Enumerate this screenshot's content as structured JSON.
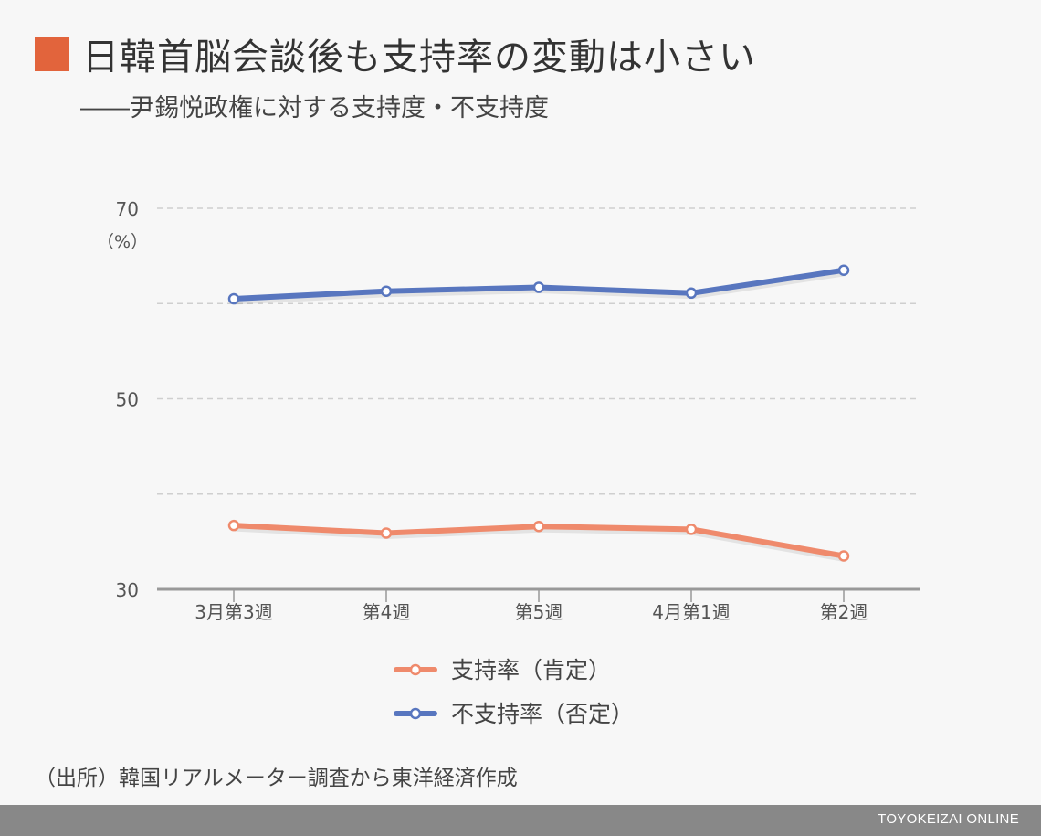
{
  "title": "日韓首脳会談後も支持率の変動は小さい",
  "subtitle": "――尹錫悦政権に対する支持度・不支持度",
  "source": "（出所）韓国リアルメーター調査から東洋経済作成",
  "footer_brand": "TOYOKEIZAI ONLINE",
  "colors": {
    "accent": "#e2643c",
    "approve": "#ef8a6c",
    "disapprove": "#5876bf",
    "footer": "#888888"
  },
  "chart_data": {
    "type": "line",
    "categories": [
      "3月第3週",
      "第4週",
      "第5週",
      "4月第1週",
      "第2週"
    ],
    "unit_label": "（%）",
    "ylim": [
      30,
      70
    ],
    "yticks": [
      30,
      50,
      70
    ],
    "gridlines": [
      40,
      50,
      60,
      70
    ],
    "series": [
      {
        "name": "支持率（肯定）",
        "values": [
          36.7,
          35.9,
          36.6,
          36.3,
          33.5
        ],
        "color": "#ef8a6c"
      },
      {
        "name": "不支持率（否定）",
        "values": [
          60.5,
          61.3,
          61.7,
          61.1,
          63.5
        ],
        "color": "#5876bf"
      }
    ],
    "grid": true,
    "legend_position": "bottom"
  }
}
